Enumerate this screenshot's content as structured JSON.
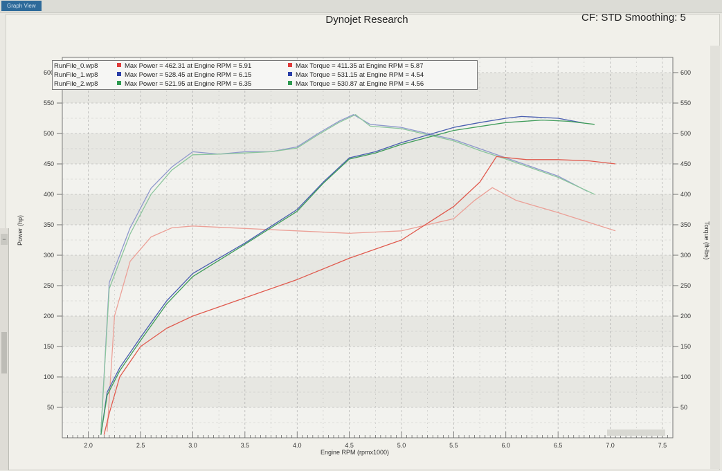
{
  "window": {
    "tab_label": "Graph View"
  },
  "header": {
    "title": "Dynojet Research",
    "cf_info": "CF: STD Smoothing: 5"
  },
  "colors": {
    "red": "#e05a4e",
    "blue": "#4a5fb0",
    "green": "#3f9c5a",
    "red_light": "#eba097",
    "blue_light": "#8e98cc",
    "green_light": "#8bc59c",
    "plot_bg": "#f2f2ee",
    "grid": "#9a9a9a"
  },
  "legend": {
    "rows": [
      {
        "run": "RunFile_0.wp8",
        "power": "Max Power = 462.31 at Engine RPM = 5.91",
        "torque": "Max Torque = 411.35 at Engine RPM = 5.87",
        "color": "#e03c3c"
      },
      {
        "run": "RunFile_1.wp8",
        "power": "Max Power = 528.45 at Engine RPM = 6.15",
        "torque": "Max Torque = 531.15 at Engine RPM = 4.54",
        "color": "#2b3fa8"
      },
      {
        "run": "RunFile_2.wp8",
        "power": "Max Power = 521.95 at Engine RPM = 6.35",
        "torque": "Max Torque = 530.87 at Engine RPM = 4.56",
        "color": "#2f9a50"
      }
    ]
  },
  "chart_data": {
    "type": "line",
    "title": "Dynojet Research",
    "xlabel": "Engine RPM (rpmx1000)",
    "ylabel": "Power (hp)",
    "y2label": "Torque (ft-lbs)",
    "xlim": [
      1.75,
      7.6
    ],
    "ylim": [
      0,
      625
    ],
    "x_ticks": [
      2.0,
      2.5,
      3.0,
      3.5,
      4.0,
      4.5,
      5.0,
      5.5,
      6.0,
      6.5,
      7.0,
      7.5
    ],
    "y_ticks": [
      50,
      100,
      150,
      200,
      250,
      300,
      350,
      400,
      450,
      500,
      550,
      600
    ],
    "y2_ticks": [
      50,
      100,
      150,
      200,
      250,
      300,
      350,
      400,
      450,
      500,
      550,
      600
    ],
    "grid": true,
    "legend_position": "top-left",
    "series": [
      {
        "name": "RunFile_0.wp8",
        "quantity": "power",
        "color_key": "red",
        "x": [
          2.15,
          2.2,
          2.3,
          2.5,
          2.75,
          3.0,
          3.5,
          4.0,
          4.5,
          5.0,
          5.5,
          5.75,
          5.91,
          6.2,
          6.5,
          6.8,
          7.05
        ],
        "y": [
          5,
          40,
          100,
          150,
          180,
          200,
          230,
          260,
          295,
          325,
          380,
          420,
          462,
          457,
          457,
          455,
          450
        ]
      },
      {
        "name": "RunFile_0.wp8",
        "quantity": "torque",
        "color_key": "red_light",
        "x": [
          2.18,
          2.25,
          2.4,
          2.6,
          2.8,
          3.0,
          3.5,
          4.0,
          4.5,
          5.0,
          5.5,
          5.7,
          5.87,
          6.1,
          6.5,
          7.05
        ],
        "y": [
          10,
          200,
          290,
          330,
          345,
          348,
          344,
          340,
          336,
          340,
          360,
          390,
          411,
          390,
          370,
          340
        ]
      },
      {
        "name": "RunFile_1.wp8",
        "quantity": "power",
        "color_key": "blue",
        "x": [
          2.12,
          2.18,
          2.3,
          2.5,
          2.75,
          3.0,
          3.5,
          4.0,
          4.25,
          4.5,
          4.75,
          5.0,
          5.5,
          5.75,
          6.0,
          6.15,
          6.5,
          6.75
        ],
        "y": [
          5,
          75,
          115,
          165,
          225,
          270,
          320,
          375,
          420,
          460,
          470,
          485,
          510,
          518,
          525,
          528,
          525,
          517
        ]
      },
      {
        "name": "RunFile_1.wp8",
        "quantity": "torque",
        "color_key": "blue_light",
        "x": [
          2.12,
          2.2,
          2.4,
          2.6,
          2.8,
          3.0,
          3.25,
          3.5,
          3.75,
          4.0,
          4.2,
          4.4,
          4.54,
          4.7,
          5.0,
          5.5,
          5.75,
          6.0,
          6.5,
          6.78
        ],
        "y": [
          10,
          255,
          345,
          410,
          445,
          470,
          466,
          470,
          470,
          478,
          500,
          520,
          531,
          515,
          510,
          490,
          475,
          460,
          430,
          405
        ]
      },
      {
        "name": "RunFile_2.wp8",
        "quantity": "power",
        "color_key": "green",
        "x": [
          2.12,
          2.18,
          2.3,
          2.5,
          2.75,
          3.0,
          3.5,
          4.0,
          4.25,
          4.5,
          4.75,
          5.0,
          5.5,
          6.0,
          6.35,
          6.6,
          6.85
        ],
        "y": [
          5,
          70,
          110,
          160,
          220,
          265,
          318,
          372,
          418,
          458,
          468,
          482,
          505,
          518,
          522,
          520,
          515
        ]
      },
      {
        "name": "RunFile_2.wp8",
        "quantity": "torque",
        "color_key": "green_light",
        "x": [
          2.12,
          2.2,
          2.4,
          2.6,
          2.8,
          3.0,
          3.25,
          3.5,
          3.75,
          4.0,
          4.2,
          4.4,
          4.56,
          4.7,
          5.0,
          5.5,
          5.75,
          6.0,
          6.5,
          6.85
        ],
        "y": [
          10,
          245,
          335,
          400,
          440,
          465,
          466,
          468,
          470,
          476,
          498,
          518,
          531,
          512,
          508,
          488,
          472,
          458,
          428,
          400
        ]
      }
    ]
  }
}
